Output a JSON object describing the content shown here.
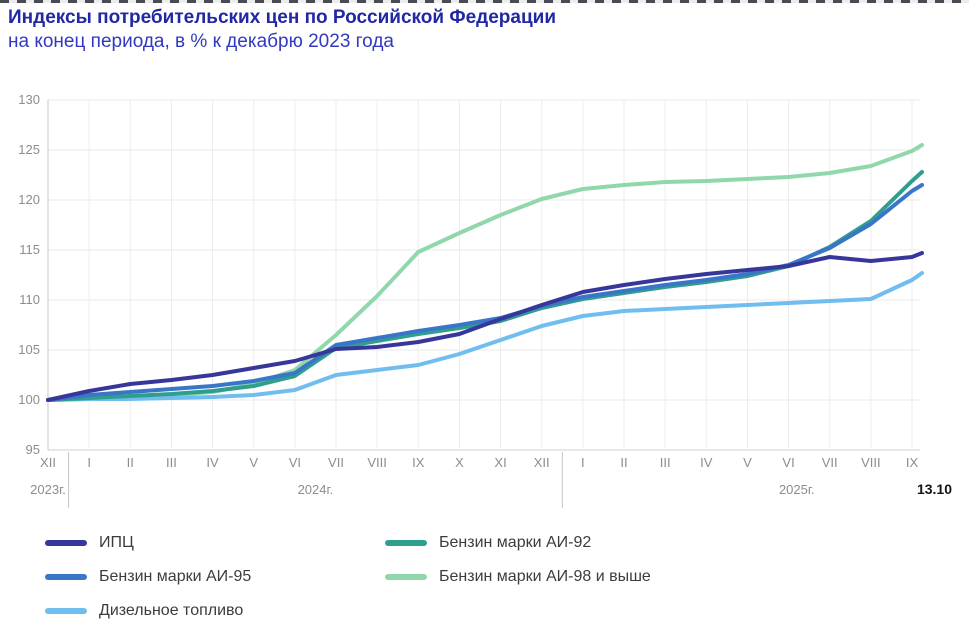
{
  "header": {
    "title": "Индексы потребительских цен по Российской Федерации",
    "subtitle": "на конец периода, в % к декабрю 2023 года"
  },
  "chart_data": {
    "type": "line",
    "x": [
      "XII",
      "I",
      "II",
      "III",
      "IV",
      "V",
      "VI",
      "VII",
      "VIII",
      "IX",
      "X",
      "XI",
      "XII",
      "I",
      "II",
      "III",
      "IV",
      "V",
      "VI",
      "VII",
      "VIII",
      "IX"
    ],
    "ylim": [
      95,
      130
    ],
    "ytick_step": 5,
    "grid": true,
    "legend_position": "bottom",
    "year_labels": [
      {
        "label": "2023г.",
        "month_index": 0
      },
      {
        "label": "2024г.",
        "month_index": 6.5
      },
      {
        "label": "2025г.",
        "month_index": 18.2
      }
    ],
    "year_separators_after_index": [
      0,
      12
    ],
    "latest_label": "13.10",
    "series": [
      {
        "key": "ipc",
        "name": "ИПЦ",
        "color": "#37379b",
        "values": [
          100,
          100.9,
          101.6,
          102.0,
          102.5,
          103.2,
          103.9,
          105.1,
          105.3,
          105.8,
          106.6,
          108.1,
          109.5,
          110.8,
          111.5,
          112.1,
          112.6,
          113.0,
          113.4,
          114.3,
          113.9,
          114.3
        ],
        "latest": 114.7
      },
      {
        "key": "ai92",
        "name": "Бензин марки АИ-92",
        "color": "#2f9e8e",
        "values": [
          100,
          100.2,
          100.4,
          100.6,
          100.9,
          101.4,
          102.4,
          105.2,
          105.9,
          106.6,
          107.2,
          107.9,
          109.2,
          110.1,
          110.7,
          111.3,
          111.8,
          112.4,
          113.4,
          115.3,
          117.9,
          121.9
        ],
        "latest": 122.8
      },
      {
        "key": "ai95",
        "name": "Бензин марки АИ-95",
        "color": "#3a76c8",
        "values": [
          100,
          100.5,
          100.8,
          101.1,
          101.4,
          101.9,
          102.7,
          105.5,
          106.2,
          106.9,
          107.5,
          108.2,
          109.4,
          110.3,
          110.9,
          111.5,
          112.0,
          112.6,
          113.5,
          115.2,
          117.6,
          120.9
        ],
        "latest": 121.5
      },
      {
        "key": "ai98",
        "name": "Бензин марки АИ-98 и выше",
        "color": "#90d8ab",
        "values": [
          100,
          100.1,
          100.3,
          100.5,
          100.8,
          101.6,
          103.0,
          106.5,
          110.4,
          114.8,
          116.7,
          118.5,
          120.1,
          121.1,
          121.5,
          121.8,
          121.9,
          122.1,
          122.3,
          122.7,
          123.4,
          124.9
        ],
        "latest": 125.5
      },
      {
        "key": "diesel",
        "name": "Дизельное топливо",
        "color": "#70bdf0",
        "values": [
          100,
          100.1,
          100.1,
          100.2,
          100.3,
          100.5,
          101.0,
          102.5,
          103.0,
          103.5,
          104.6,
          106.0,
          107.4,
          108.4,
          108.9,
          109.1,
          109.3,
          109.5,
          109.7,
          109.9,
          110.1,
          112.0
        ],
        "latest": 112.7
      }
    ]
  }
}
